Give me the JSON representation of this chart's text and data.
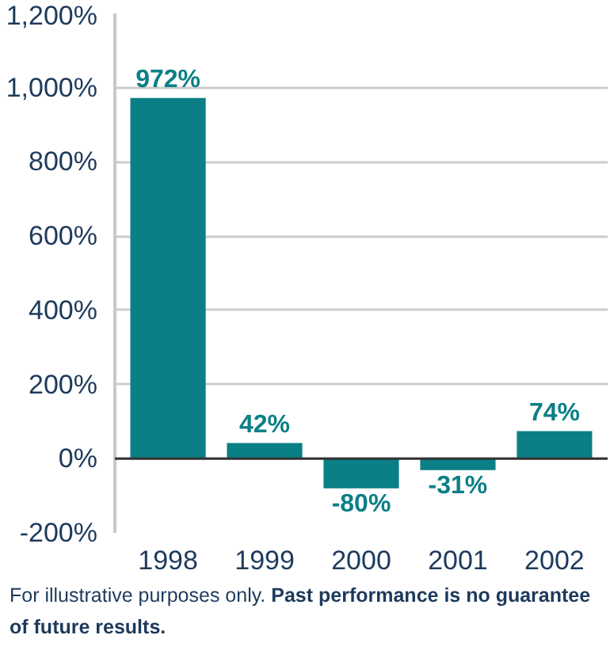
{
  "chart_data": {
    "type": "bar",
    "categories": [
      "1998",
      "1999",
      "2000",
      "2001",
      "2002"
    ],
    "values": [
      972,
      42,
      -80,
      -31,
      74
    ],
    "value_labels": [
      "972%",
      "42%",
      "-80%",
      "-31%",
      "74%"
    ],
    "color": "#0a7f86",
    "ylim": [
      -200,
      1200
    ],
    "yticks": [
      {
        "value": -200,
        "label": "-200%"
      },
      {
        "value": 0,
        "label": "0%"
      },
      {
        "value": 200,
        "label": "200%"
      },
      {
        "value": 400,
        "label": "400%"
      },
      {
        "value": 600,
        "label": "600%"
      },
      {
        "value": 800,
        "label": "800%"
      },
      {
        "value": 1000,
        "label": "1,000%"
      },
      {
        "value": 1200,
        "label": "1,200%"
      }
    ],
    "grid": "y",
    "annotations": [
      "For illustrative purposes only.",
      "Past performance is no guarantee of future results."
    ]
  }
}
